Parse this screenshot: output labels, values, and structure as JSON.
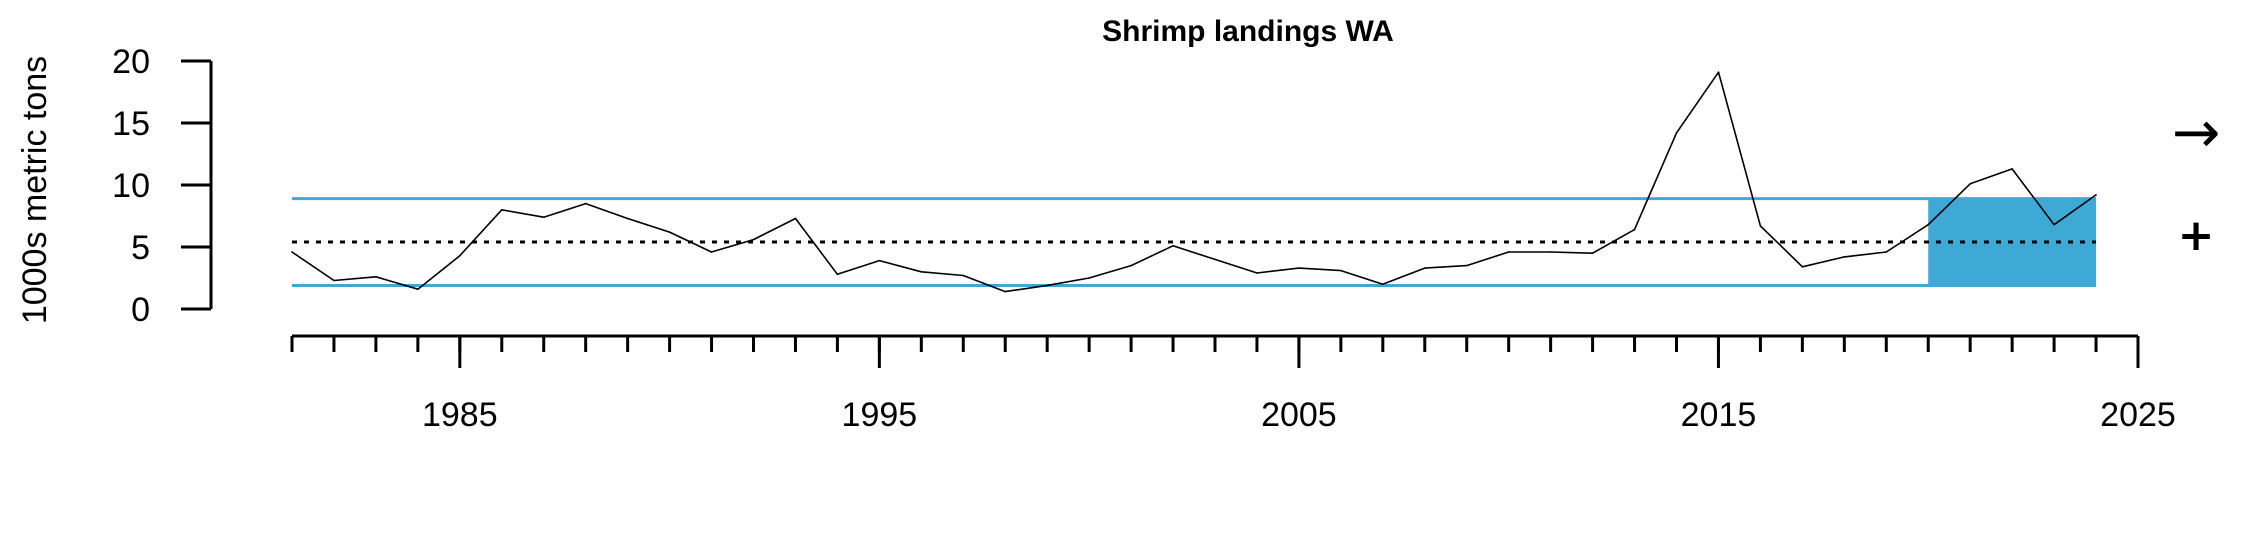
{
  "chart_data": {
    "type": "line",
    "title": "Shrimp landings WA",
    "xlabel": "",
    "ylabel": "1000s metric tons",
    "x_tick_labels": [
      "1985",
      "1995",
      "2005",
      "2015",
      "2025"
    ],
    "y_tick_labels": [
      "0",
      "5",
      "10",
      "15",
      "20"
    ],
    "xlim": [
      1981,
      2025
    ],
    "ylim": [
      0,
      20
    ],
    "series": [
      {
        "x": [
          1981,
          1982,
          1983,
          1984,
          1985,
          1986,
          1987,
          1988,
          1989,
          1990,
          1991,
          1992,
          1993,
          1994,
          1995,
          1996,
          1997,
          1998,
          1999,
          2000,
          2001,
          2002,
          2003,
          2004,
          2005,
          2006,
          2007,
          2008,
          2009,
          2010,
          2011,
          2012,
          2013,
          2014,
          2015,
          2016,
          2017,
          2018,
          2019,
          2020,
          2021,
          2022,
          2023,
          2024
        ],
        "values": [
          4.6,
          2.3,
          2.6,
          1.6,
          4.3,
          8.0,
          7.4,
          8.5,
          7.3,
          6.2,
          4.6,
          5.6,
          7.3,
          2.8,
          3.9,
          3.0,
          2.7,
          1.4,
          1.9,
          2.5,
          3.5,
          5.1,
          4.0,
          2.9,
          3.3,
          3.1,
          2.0,
          3.3,
          3.5,
          4.6,
          4.6,
          4.5,
          6.4,
          14.2,
          19.1,
          6.7,
          3.4,
          4.2,
          4.6,
          6.8,
          10.1,
          11.3,
          6.8,
          9.2
        ],
        "color": "#000000"
      }
    ],
    "reference_lines": {
      "mean": 5.4,
      "upper_sd": 8.9,
      "lower_sd": 1.9
    },
    "highlight_period": {
      "x_start": 2020,
      "x_end": 2024
    },
    "trend_symbol": "→",
    "mean_symbol": "+",
    "colors": {
      "band": "#3fa9d5",
      "series": "#000000",
      "mean_line": "#000000"
    },
    "grid": false
  }
}
